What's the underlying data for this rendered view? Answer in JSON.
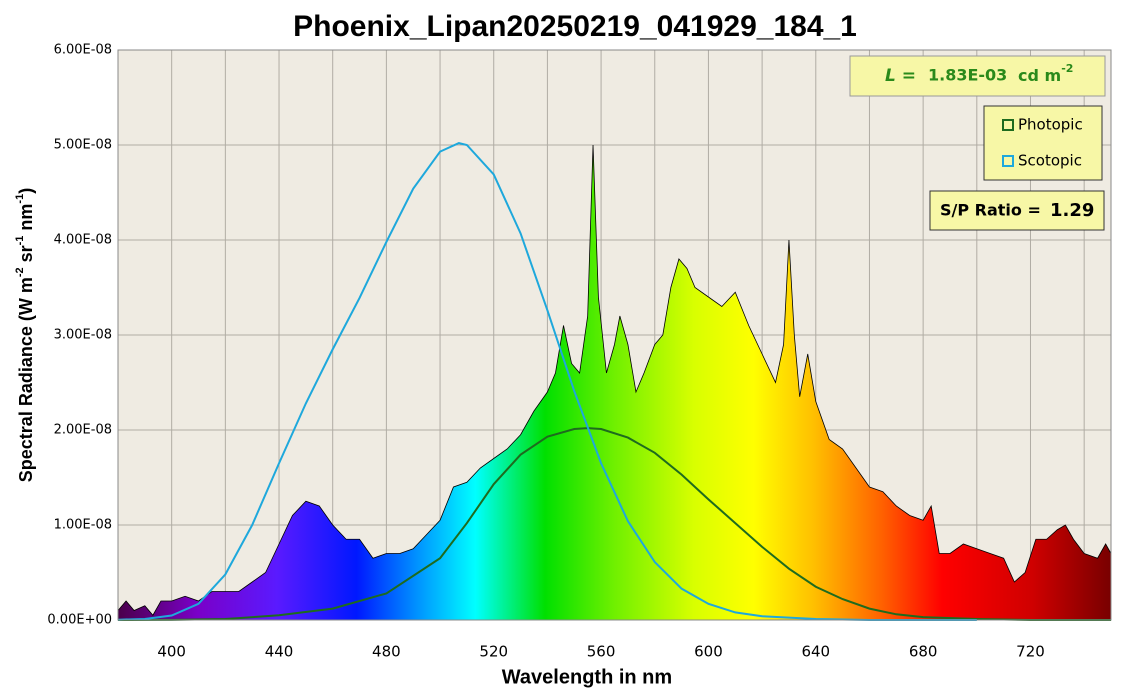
{
  "chart_data": {
    "type": "area",
    "title": "Phoenix_Lipan20250219_041929_184_1",
    "xlabel": "Wavelength in nm",
    "ylabel": [
      "Spectral Radiance  (W m",
      "-2",
      " sr",
      "-1",
      " nm",
      "-1",
      ")"
    ],
    "xlim": [
      380,
      750
    ],
    "xticks": [
      400,
      440,
      480,
      520,
      560,
      600,
      640,
      680,
      720
    ],
    "x_minor_grid": [
      380,
      420,
      460,
      500,
      540,
      580,
      620,
      660,
      700,
      740
    ],
    "ylim": [
      0,
      6e-08
    ],
    "yticks": [
      {
        "value": 0,
        "label": "0.00E+00"
      },
      {
        "value": 1e-08,
        "label": "1.00E-08"
      },
      {
        "value": 2e-08,
        "label": "2.00E-08"
      },
      {
        "value": 3e-08,
        "label": "3.00E-08"
      },
      {
        "value": 4e-08,
        "label": "4.00E-08"
      },
      {
        "value": 5e-08,
        "label": "5.00E-08"
      },
      {
        "value": 6e-08,
        "label": "6.00E-08"
      }
    ],
    "grid": true,
    "spectrum": {
      "x": [
        380,
        383,
        386,
        390,
        393,
        396,
        400,
        405,
        410,
        415,
        420,
        425,
        430,
        435,
        440,
        445,
        450,
        455,
        460,
        465,
        470,
        475,
        480,
        485,
        490,
        495,
        500,
        505,
        510,
        515,
        520,
        525,
        530,
        535,
        540,
        543,
        546,
        549,
        552,
        555,
        557,
        559,
        562,
        565,
        567,
        570,
        573,
        576,
        580,
        583,
        586,
        589,
        592,
        595,
        600,
        605,
        610,
        615,
        620,
        625,
        628,
        630,
        632,
        634,
        637,
        640,
        645,
        650,
        655,
        660,
        665,
        670,
        675,
        680,
        683,
        686,
        690,
        695,
        700,
        705,
        710,
        714,
        718,
        722,
        726,
        730,
        733,
        736,
        740,
        745,
        748,
        750
      ],
      "values": [
        1e-09,
        2e-09,
        1e-09,
        1.5e-09,
        5e-10,
        2e-09,
        2e-09,
        2.5e-09,
        2e-09,
        3e-09,
        3e-09,
        3e-09,
        4e-09,
        5e-09,
        8e-09,
        1.1e-08,
        1.25e-08,
        1.2e-08,
        1e-08,
        8.5e-09,
        8.5e-09,
        6.5e-09,
        7e-09,
        7e-09,
        7.5e-09,
        9e-09,
        1.05e-08,
        1.4e-08,
        1.45e-08,
        1.6e-08,
        1.7e-08,
        1.8e-08,
        1.95e-08,
        2.2e-08,
        2.4e-08,
        2.6e-08,
        3.1e-08,
        2.7e-08,
        2.6e-08,
        3.2e-08,
        5e-08,
        3.4e-08,
        2.6e-08,
        2.9e-08,
        3.2e-08,
        2.9e-08,
        2.4e-08,
        2.6e-08,
        2.9e-08,
        3e-08,
        3.5e-08,
        3.8e-08,
        3.7e-08,
        3.5e-08,
        3.4e-08,
        3.3e-08,
        3.45e-08,
        3.1e-08,
        2.8e-08,
        2.5e-08,
        2.9e-08,
        4e-08,
        3e-08,
        2.35e-08,
        2.8e-08,
        2.3e-08,
        1.9e-08,
        1.8e-08,
        1.6e-08,
        1.4e-08,
        1.35e-08,
        1.2e-08,
        1.1e-08,
        1.05e-08,
        1.2e-08,
        7e-09,
        7e-09,
        8e-09,
        7.5e-09,
        7e-09,
        6.5e-09,
        4e-09,
        5e-09,
        8.5e-09,
        8.5e-09,
        9.5e-09,
        1e-08,
        8.5e-09,
        7e-09,
        6.5e-09,
        8e-09,
        7e-09
      ]
    },
    "series": [
      {
        "name": "Photopic",
        "color": "#1e6b1e",
        "x": [
          380,
          400,
          420,
          440,
          460,
          480,
          500,
          510,
          520,
          530,
          540,
          550,
          555,
          560,
          570,
          580,
          590,
          600,
          610,
          620,
          630,
          640,
          650,
          660,
          670,
          680,
          700,
          720,
          750
        ],
        "values": [
          0,
          1e-11,
          1e-10,
          5e-10,
          1.2e-09,
          2.8e-09,
          6.5e-09,
          1.02e-08,
          1.43e-08,
          1.74e-08,
          1.93e-08,
          2.01e-08,
          2.02e-08,
          2.01e-08,
          1.92e-08,
          1.76e-08,
          1.53e-08,
          1.27e-08,
          1.02e-08,
          7.7e-09,
          5.4e-09,
          3.5e-09,
          2.2e-09,
          1.2e-09,
          6e-10,
          3e-10,
          1e-10,
          0,
          0
        ]
      },
      {
        "name": "Scotopic",
        "color": "#1ea8dc",
        "x": [
          380,
          390,
          400,
          410,
          420,
          430,
          440,
          450,
          460,
          470,
          480,
          490,
          500,
          507,
          510,
          520,
          530,
          540,
          550,
          560,
          570,
          580,
          590,
          600,
          610,
          620,
          640,
          660,
          680,
          700
        ],
        "values": [
          3e-11,
          1.1e-10,
          4.7e-10,
          1.7e-09,
          4.8e-09,
          1e-08,
          1.65e-08,
          2.28e-08,
          2.85e-08,
          3.39e-08,
          3.98e-08,
          4.54e-08,
          4.93e-08,
          5.02e-08,
          5e-08,
          4.69e-08,
          4.07e-08,
          3.26e-08,
          2.41e-08,
          1.65e-08,
          1.04e-08,
          6.1e-09,
          3.3e-09,
          1.7e-09,
          8e-10,
          4e-10,
          1e-10,
          0,
          0,
          0
        ]
      }
    ],
    "luminance": {
      "label": "L =",
      "value": "1.83E-03",
      "unit": "cd m",
      "unit_exp": "-2"
    },
    "sp_ratio": {
      "label": "S/P Ratio =",
      "value": 1.29
    }
  }
}
